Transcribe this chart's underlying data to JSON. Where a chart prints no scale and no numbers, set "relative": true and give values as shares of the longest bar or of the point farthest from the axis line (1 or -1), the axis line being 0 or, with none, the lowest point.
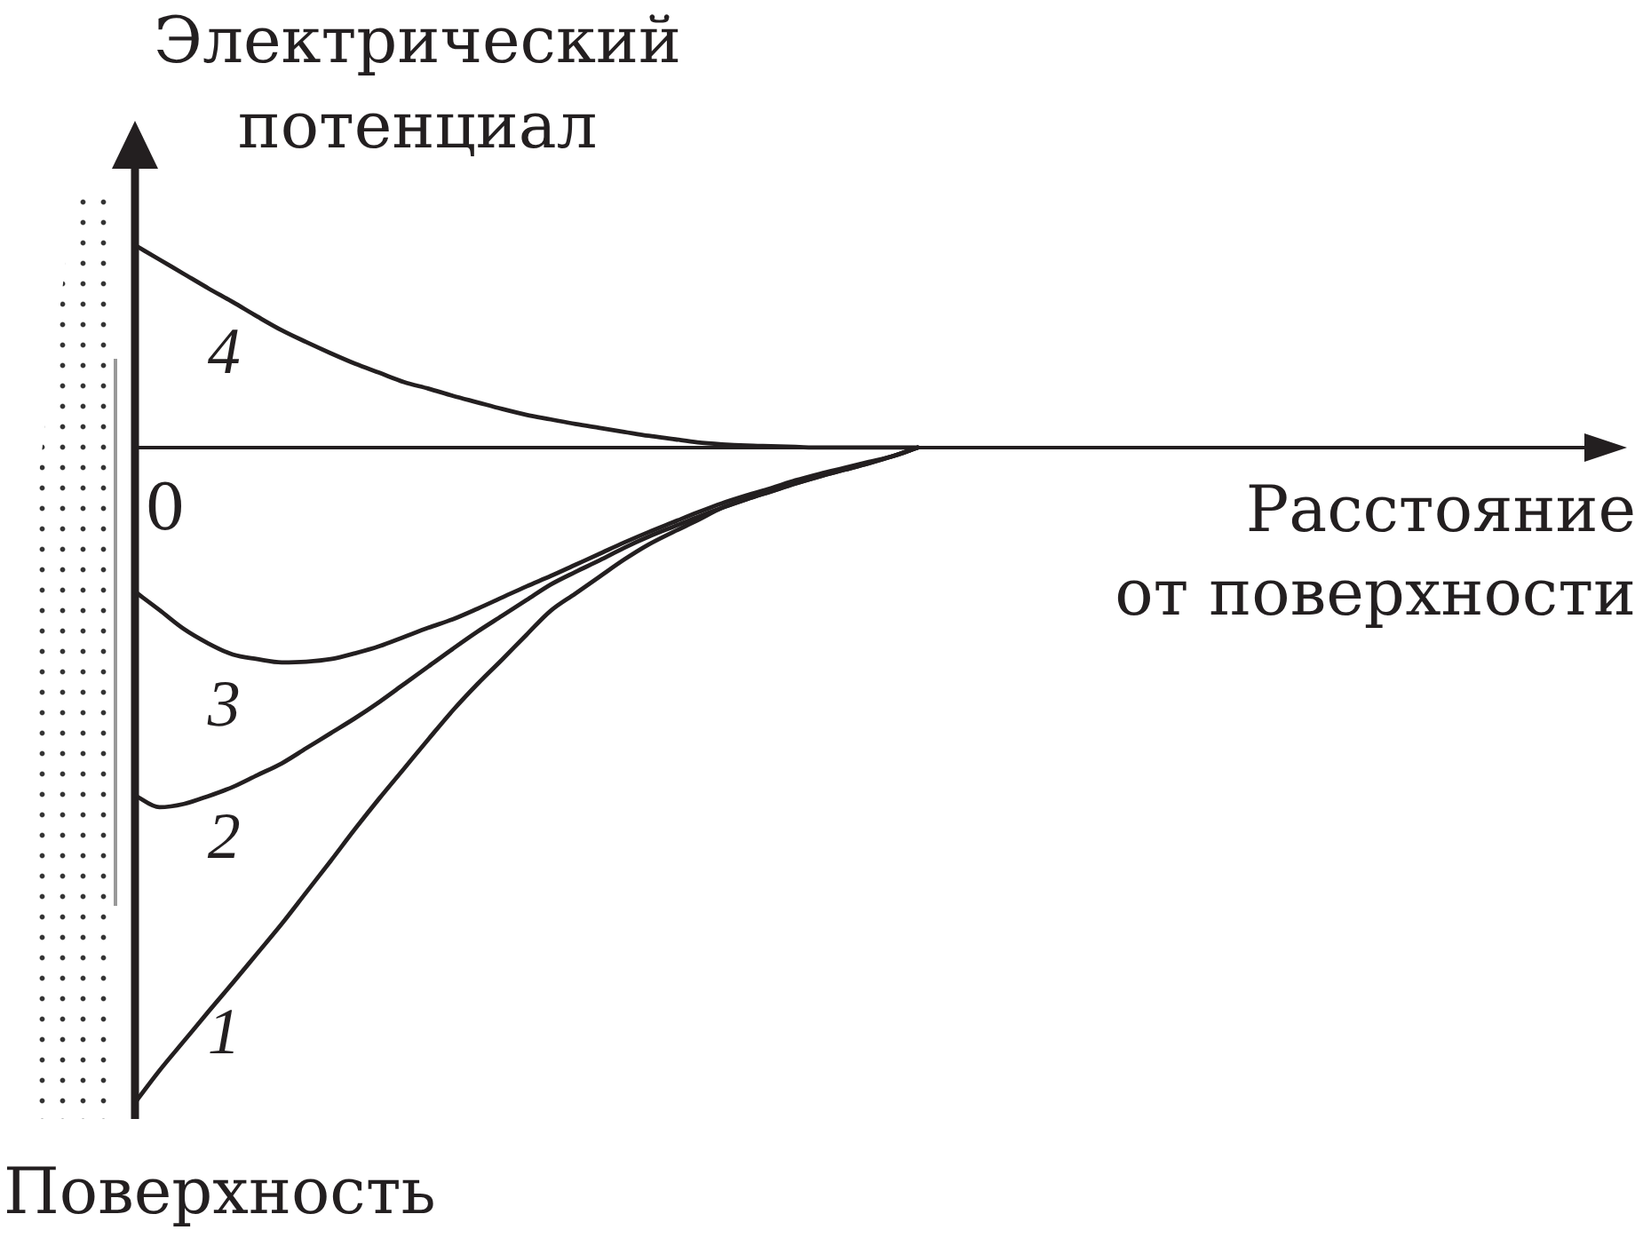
{
  "chart_data": {
    "type": "line",
    "xlabel": "Расстояние\nот поверхности",
    "ylabel": "Электрический\nпотенциал",
    "annotations": [
      "0",
      "Поверхность"
    ],
    "relative": true,
    "marker": "none",
    "line_style": "solid",
    "tick_labels": false,
    "categories": [
      null,
      null,
      null,
      null,
      null,
      null,
      null,
      null,
      null,
      null,
      null,
      null,
      null,
      null,
      null,
      null,
      null,
      null,
      null,
      null,
      null,
      null,
      null,
      null,
      null,
      null,
      null,
      null,
      null,
      null,
      null,
      null,
      null,
      null,
      null,
      null,
      null,
      null,
      null,
      null,
      null,
      null,
      null,
      null,
      null,
      null,
      null,
      null,
      null,
      null,
      null,
      null,
      null,
      null,
      null,
      null,
      null,
      null,
      null,
      null,
      null,
      null
    ],
    "series": [
      {
        "name": "1",
        "color": "#231f20",
        "values": [
          -1,
          -0.951,
          -0.906,
          -0.861,
          -0.817,
          -0.772,
          -0.727,
          -0.679,
          -0.631,
          -0.582,
          -0.535,
          -0.49,
          -0.445,
          -0.401,
          -0.361,
          -0.324,
          -0.286,
          -0.249,
          -0.223,
          -0.197,
          -0.171,
          -0.148,
          -0.129,
          -0.111,
          -0.092,
          -0.079,
          -0.067,
          -0.055,
          -0.044,
          -0.034,
          -0.024,
          -0.013,
          0,
          null,
          null,
          null,
          null,
          null,
          null,
          null,
          null,
          null,
          null,
          null,
          null,
          null,
          null,
          null,
          null,
          null,
          null,
          null,
          null,
          null,
          null,
          null,
          null,
          null,
          null,
          null,
          null,
          null
        ]
      },
      {
        "name": "2",
        "color": "#231f20",
        "values": [
          -0.531,
          -0.549,
          -0.544,
          -0.532,
          -0.518,
          -0.5,
          -0.482,
          -0.459,
          -0.436,
          -0.413,
          -0.388,
          -0.361,
          -0.334,
          -0.307,
          -0.281,
          -0.257,
          -0.233,
          -0.209,
          -0.19,
          -0.172,
          -0.153,
          -0.136,
          -0.121,
          -0.106,
          -0.092,
          -0.079,
          -0.067,
          -0.055,
          -0.044,
          -0.034,
          -0.024,
          -0.013,
          0,
          null,
          null,
          null,
          null,
          null,
          null,
          null,
          null,
          null,
          null,
          null,
          null,
          null,
          null,
          null,
          null,
          null,
          null,
          null,
          null,
          null,
          null,
          null,
          null,
          null,
          null,
          null,
          null,
          null
        ]
      },
      {
        "name": "3",
        "color": "#231f20",
        "values": [
          -0.22,
          -0.248,
          -0.277,
          -0.299,
          -0.316,
          -0.323,
          -0.328,
          -0.327,
          -0.323,
          -0.314,
          -0.303,
          -0.289,
          -0.275,
          -0.262,
          -0.246,
          -0.229,
          -0.212,
          -0.196,
          -0.179,
          -0.162,
          -0.145,
          -0.129,
          -0.114,
          -0.099,
          -0.085,
          -0.073,
          -0.062,
          -0.05,
          -0.04,
          -0.031,
          -0.022,
          -0.013,
          0,
          null,
          null,
          null,
          null,
          null,
          null,
          null,
          null,
          null,
          null,
          null,
          null,
          null,
          null,
          null,
          null,
          null,
          null,
          null,
          null,
          null,
          null,
          null,
          null,
          null,
          null,
          null,
          null,
          null
        ]
      },
      {
        "name": "4",
        "color": "#231f20",
        "values": [
          0.309,
          0.287,
          0.265,
          0.243,
          0.222,
          0.2,
          0.179,
          0.161,
          0.144,
          0.128,
          0.114,
          0.1,
          0.09,
          0.079,
          0.069,
          0.059,
          0.05,
          0.043,
          0.036,
          0.03,
          0.024,
          0.018,
          0.013,
          0.008,
          0.005,
          0.003,
          0.002,
          0.001,
          0,
          0,
          0,
          0,
          0,
          null,
          null,
          null,
          null,
          null,
          null,
          null,
          null,
          null,
          null,
          null,
          null,
          null,
          null,
          null,
          null,
          null,
          null,
          null,
          null,
          null,
          null,
          null,
          null,
          null,
          null,
          null,
          null,
          null
        ]
      }
    ]
  }
}
